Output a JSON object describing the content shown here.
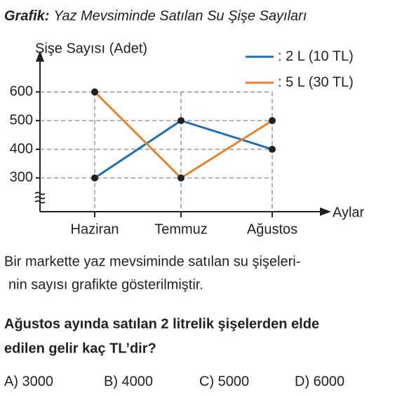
{
  "chart_data": {
    "type": "line",
    "title_prefix": "Grafik:",
    "title": "Yaz Mevsiminde Satılan Su Şişe Sayıları",
    "ylabel": "Şişe Sayısı (Adet)",
    "xlabel": "Aylar",
    "categories": [
      "Haziran",
      "Temmuz",
      "Ağustos"
    ],
    "series": [
      {
        "name": ": 2 L (10 TL)",
        "color": "#1f6fb2",
        "values": [
          300,
          500,
          400
        ]
      },
      {
        "name": ": 5 L (30 TL)",
        "color": "#e8832a",
        "values": [
          600,
          300,
          500
        ]
      }
    ],
    "ylim": [
      180,
      730
    ],
    "yticks": [
      300,
      400,
      500,
      600
    ],
    "grid": true,
    "legend": "top-right"
  },
  "text": {
    "intro_lines": [
      "Bir markette yaz mevsiminde satılan su şişeleri-",
      "nin sayısı grafikte gösterilmiştir."
    ],
    "question_lines": [
      "Ağustos ayında satılan 2 litrelik şişelerden elde",
      "edilen gelir kaç TL’dir?"
    ],
    "options": [
      "A) 3000",
      "B) 4000",
      "C) 5000",
      "D) 6000"
    ]
  }
}
